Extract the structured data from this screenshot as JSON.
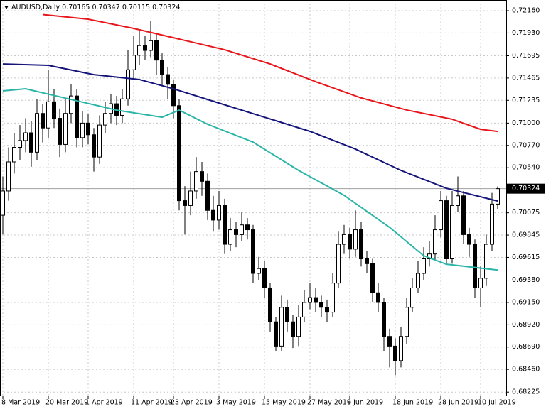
{
  "chart_data": {
    "type": "candlestick",
    "symbol": "AUDUSD,Daily",
    "categories": [
      "8 Mar 2019",
      null,
      null,
      null,
      null,
      null,
      null,
      null,
      "20 Mar 2019",
      null,
      null,
      null,
      null,
      null,
      null,
      "1 Apr 2019",
      null,
      null,
      null,
      null,
      null,
      null,
      null,
      "11 Apr 2019",
      null,
      null,
      null,
      null,
      null,
      null,
      "23 Apr 2019",
      null,
      null,
      null,
      null,
      null,
      null,
      null,
      "3 May 2019",
      null,
      null,
      null,
      null,
      null,
      null,
      null,
      "15 May 2019",
      null,
      null,
      null,
      null,
      null,
      null,
      null,
      "27 May 2019",
      null,
      null,
      null,
      null,
      null,
      null,
      "6 Jun 2019",
      null,
      null,
      null,
      null,
      null,
      null,
      null,
      "18 Jun 2019",
      null,
      null,
      null,
      null,
      null,
      null,
      null,
      "28 Jun 2019",
      null,
      null,
      null,
      null,
      null,
      null,
      "10 Jul 2019",
      null,
      null,
      null
    ],
    "open": [
      0.7005,
      0.703,
      0.706,
      0.7075,
      0.7082,
      0.709,
      0.707,
      0.711,
      0.7095,
      0.7122,
      0.7105,
      0.7078,
      0.711,
      0.7128,
      0.7085,
      0.71,
      0.7088,
      0.7065,
      0.7098,
      0.711,
      0.712,
      0.7108,
      0.7125,
      0.7155,
      0.717,
      0.718,
      0.7175,
      0.7185,
      0.7165,
      0.715,
      0.714,
      0.7118,
      0.702,
      0.7015,
      0.703,
      0.705,
      0.704,
      0.701,
      0.7,
      0.7015,
      0.6975,
      0.699,
      0.6985,
      0.6995,
      0.699,
      0.6945,
      0.695,
      0.693,
      0.6895,
      0.687,
      0.691,
      0.6895,
      0.688,
      0.69,
      0.6915,
      0.692,
      0.6915,
      0.691,
      0.6905,
      0.6935,
      0.6975,
      0.6985,
      0.697,
      0.699,
      0.696,
      0.6955,
      0.6925,
      0.6915,
      0.688,
      0.687,
      0.6855,
      0.688,
      0.691,
      0.693,
      0.6945,
      0.696,
      0.6965,
      0.699,
      0.702,
      0.696,
      0.7015,
      0.7025,
      0.6985,
      0.6975,
      0.693,
      0.694,
      0.6975,
      0.70165
    ],
    "high": [
      0.7045,
      0.7075,
      0.709,
      0.7098,
      0.7105,
      0.7102,
      0.7125,
      0.712,
      0.7155,
      0.7135,
      0.7115,
      0.7125,
      0.714,
      0.7135,
      0.7112,
      0.711,
      0.7095,
      0.7108,
      0.7122,
      0.713,
      0.7128,
      0.7135,
      0.7175,
      0.719,
      0.7195,
      0.719,
      0.7205,
      0.7192,
      0.7172,
      0.7158,
      0.7145,
      0.7125,
      0.7035,
      0.705,
      0.7065,
      0.706,
      0.7048,
      0.7025,
      0.703,
      0.7022,
      0.7002,
      0.6998,
      0.7008,
      0.7002,
      0.6995,
      0.6962,
      0.6958,
      0.6935,
      0.69,
      0.6922,
      0.6918,
      0.6902,
      0.6912,
      0.6928,
      0.6935,
      0.693,
      0.6922,
      0.6918,
      0.6945,
      0.6988,
      0.6995,
      0.6992,
      0.701,
      0.6998,
      0.6968,
      0.696,
      0.6935,
      0.692,
      0.6888,
      0.6878,
      0.689,
      0.692,
      0.694,
      0.6958,
      0.6972,
      0.6978,
      0.7005,
      0.703,
      0.7025,
      0.703,
      0.7045,
      0.703,
      0.6992,
      0.698,
      0.6952,
      0.6985,
      0.7028,
      0.70347
    ],
    "low": [
      0.6985,
      0.702,
      0.7048,
      0.7062,
      0.707,
      0.7055,
      0.7062,
      0.708,
      0.7085,
      0.7095,
      0.7065,
      0.707,
      0.71,
      0.7075,
      0.7075,
      0.7078,
      0.705,
      0.7058,
      0.709,
      0.71,
      0.7098,
      0.71,
      0.7118,
      0.7145,
      0.716,
      0.7165,
      0.7168,
      0.715,
      0.7138,
      0.7125,
      0.7105,
      0.701,
      0.6985,
      0.7005,
      0.7022,
      0.7025,
      0.7,
      0.6988,
      0.699,
      0.6965,
      0.6968,
      0.6972,
      0.6978,
      0.698,
      0.6935,
      0.6938,
      0.692,
      0.6885,
      0.6865,
      0.6865,
      0.6885,
      0.6868,
      0.687,
      0.6895,
      0.6908,
      0.6905,
      0.69,
      0.6895,
      0.69,
      0.693,
      0.6965,
      0.696,
      0.6962,
      0.6952,
      0.6945,
      0.6915,
      0.6905,
      0.6865,
      0.6848,
      0.684,
      0.6848,
      0.6872,
      0.6905,
      0.6925,
      0.6938,
      0.6952,
      0.6958,
      0.6982,
      0.6955,
      0.6955,
      0.7008,
      0.6975,
      0.6962,
      0.692,
      0.691,
      0.6932,
      0.6968,
      0.70115
    ],
    "close": [
      0.703,
      0.706,
      0.7075,
      0.7082,
      0.709,
      0.707,
      0.711,
      0.7095,
      0.7122,
      0.7105,
      0.7078,
      0.711,
      0.7128,
      0.7085,
      0.71,
      0.7088,
      0.7065,
      0.7098,
      0.711,
      0.712,
      0.7108,
      0.7125,
      0.7155,
      0.717,
      0.718,
      0.7175,
      0.7185,
      0.7165,
      0.715,
      0.714,
      0.7118,
      0.702,
      0.7015,
      0.703,
      0.705,
      0.704,
      0.701,
      0.7,
      0.7015,
      0.6975,
      0.699,
      0.6985,
      0.6995,
      0.699,
      0.6945,
      0.695,
      0.693,
      0.6895,
      0.687,
      0.691,
      0.6895,
      0.688,
      0.69,
      0.6915,
      0.692,
      0.6915,
      0.691,
      0.6905,
      0.6935,
      0.6975,
      0.6985,
      0.697,
      0.699,
      0.696,
      0.6955,
      0.6925,
      0.6915,
      0.688,
      0.687,
      0.6855,
      0.688,
      0.691,
      0.693,
      0.6945,
      0.696,
      0.6965,
      0.699,
      0.702,
      0.696,
      0.7015,
      0.7025,
      0.6985,
      0.6975,
      0.693,
      0.694,
      0.6975,
      0.70165,
      0.70324
    ],
    "lines": [
      {
        "color": "#e8161b",
        "x": [
          7,
          15,
          23,
          31,
          39,
          47,
          55,
          63,
          71,
          79,
          84,
          87
        ],
        "values": [
          0.7212,
          0.72072,
          0.71977,
          0.71867,
          0.71757,
          0.7161,
          0.71427,
          0.7126,
          0.71135,
          0.7104,
          0.70936,
          0.70914
        ]
      },
      {
        "color": "#14147a",
        "x": [
          0,
          8,
          16,
          24,
          30,
          38,
          46,
          54,
          62,
          70,
          78,
          87
        ],
        "values": [
          0.7161,
          0.71596,
          0.715,
          0.7145,
          0.71354,
          0.71207,
          0.71061,
          0.70915,
          0.70732,
          0.70512,
          0.70328,
          0.70196
        ]
      },
      {
        "color": "#2bb5a8",
        "x": [
          0,
          4,
          12,
          20,
          28,
          31,
          36,
          44,
          52,
          60,
          68,
          74,
          78,
          87
        ],
        "values": [
          0.71332,
          0.71354,
          0.71244,
          0.71134,
          0.71061,
          0.71134,
          0.70988,
          0.70804,
          0.70512,
          0.70255,
          0.69925,
          0.69632,
          0.69544,
          0.69485
        ]
      }
    ],
    "ylim": [
      0.6819,
      0.7227
    ],
    "yticks": [
      {
        "value": 0.7216,
        "label": "0.72160"
      },
      {
        "value": 0.7193,
        "label": "0.71930"
      },
      0.71695,
      0.71465,
      0.71235,
      {
        "value": 0.71,
        "label": "0.71000"
      },
      {
        "value": 0.7077,
        "label": "0.70770"
      },
      {
        "value": 0.7054,
        "label": "0.70540"
      },
      0.70075,
      0.69845,
      0.69615,
      {
        "value": 0.6938,
        "label": "0.69380"
      },
      {
        "value": 0.6915,
        "label": "0.69150"
      },
      {
        "value": 0.6892,
        "label": "0.68920"
      },
      {
        "value": 0.6869,
        "label": "0.68690"
      },
      {
        "value": 0.6846,
        "label": "0.68460"
      },
      0.68225
    ],
    "grid": true
  }
}
